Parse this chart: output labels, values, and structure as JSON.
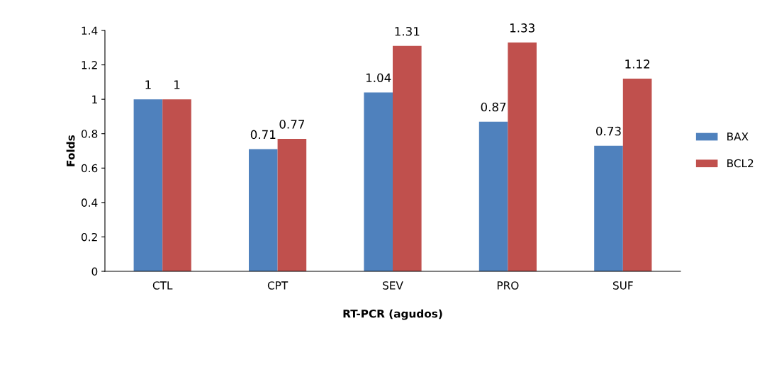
{
  "chart_data": {
    "type": "bar",
    "xlabel": "RT-PCR (agudos)",
    "ylabel": "Folds",
    "categories": [
      "CTL",
      "CPT",
      "SEV",
      "PRO",
      "SUF"
    ],
    "series": [
      {
        "name": "BAX",
        "color": "#4f81bd",
        "values": [
          1,
          0.71,
          1.04,
          0.87,
          0.73
        ]
      },
      {
        "name": "BCL2",
        "color": "#c0504d",
        "values": [
          1,
          0.77,
          1.31,
          1.33,
          1.12
        ]
      }
    ],
    "ylim": [
      0,
      1.4
    ],
    "yticks": [
      0,
      0.2,
      0.4,
      0.6,
      0.8,
      1,
      1.2,
      1.4
    ],
    "data_labels": true,
    "grid": false,
    "legend": "right"
  }
}
